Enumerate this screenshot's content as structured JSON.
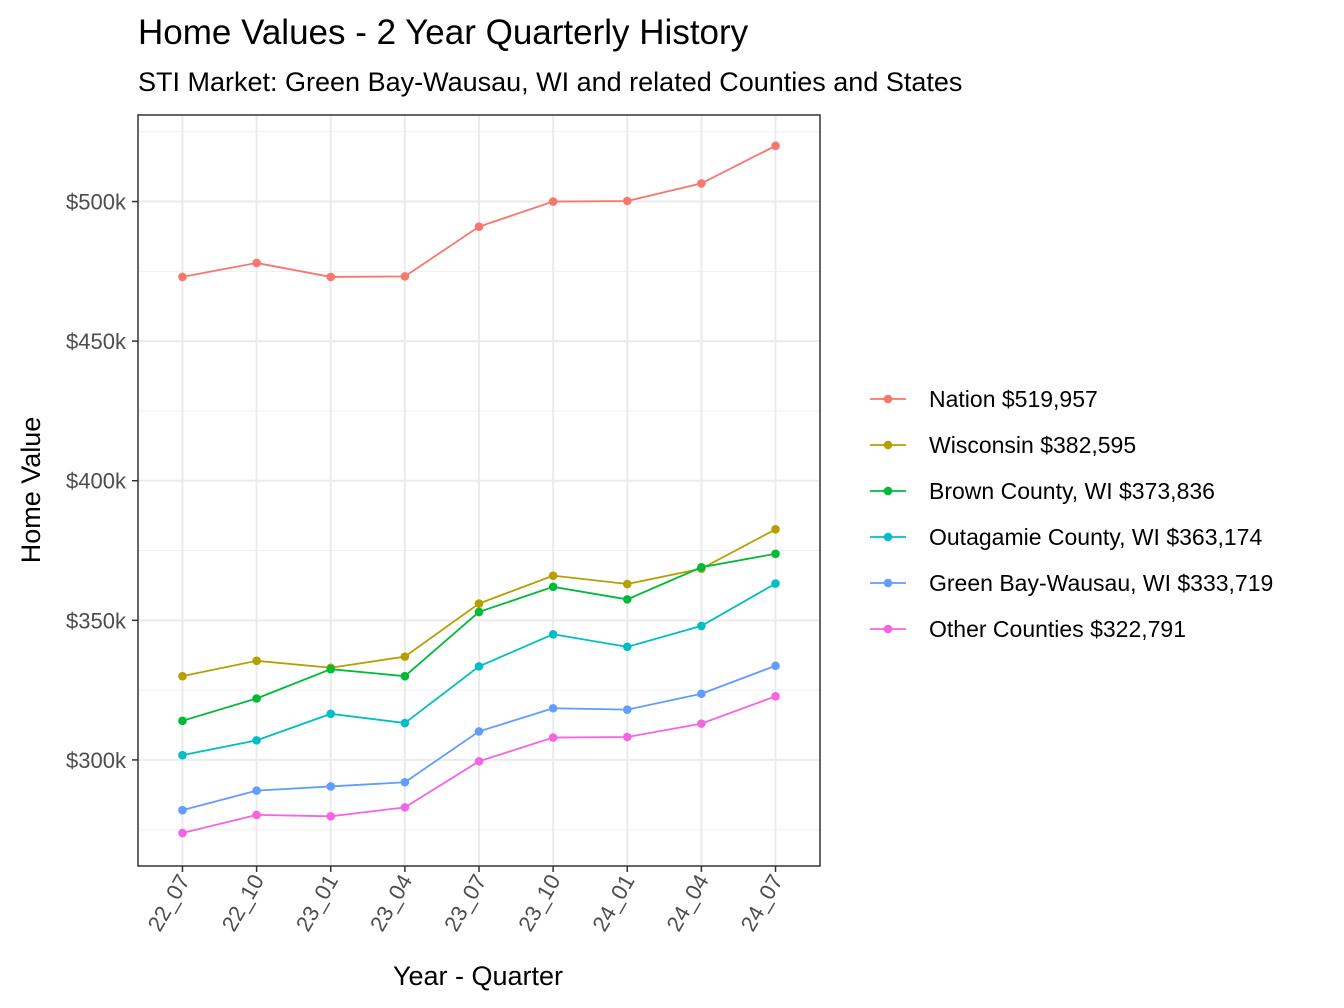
{
  "chart_data": {
    "type": "line",
    "title": "Home Values - 2 Year Quarterly History",
    "subtitle": "STI Market: Green Bay-Wausau, WI and related Counties and States",
    "xlabel": "Year - Quarter",
    "ylabel": "Home Value",
    "categories": [
      "22_07",
      "22_10",
      "23_01",
      "23_04",
      "23_07",
      "23_10",
      "24_01",
      "24_04",
      "24_07"
    ],
    "ylim": [
      262000,
      531000
    ],
    "yticks": [
      300000,
      350000,
      400000,
      450000,
      500000
    ],
    "ytick_labels": [
      "$300k",
      "$350k",
      "$400k",
      "$450k",
      "$500k"
    ],
    "grid": true,
    "legend_position": "right",
    "series": [
      {
        "name": "Nation $519,957",
        "color": "#F8766D",
        "values": [
          473000,
          478000,
          473000,
          473200,
          491000,
          500000,
          500200,
          506500,
          519957
        ]
      },
      {
        "name": "Wisconsin $382,595",
        "color": "#B79F00",
        "values": [
          330000,
          335500,
          333000,
          337000,
          356000,
          366000,
          363000,
          368500,
          382595
        ]
      },
      {
        "name": "Brown County, WI $373,836",
        "color": "#00BA38",
        "values": [
          314000,
          322000,
          332500,
          330000,
          353000,
          362000,
          357500,
          369000,
          373836
        ]
      },
      {
        "name": "Outagamie County, WI $363,174",
        "color": "#00BFC4",
        "values": [
          301700,
          307000,
          316500,
          313200,
          333500,
          345000,
          340500,
          348000,
          363174
        ]
      },
      {
        "name": "Green Bay-Wausau, WI $333,719",
        "color": "#619CFF",
        "values": [
          282000,
          289000,
          290500,
          292000,
          310200,
          318500,
          318000,
          323700,
          333719
        ]
      },
      {
        "name": "Other Counties $322,791",
        "color": "#F564E3",
        "values": [
          273800,
          280300,
          279800,
          283000,
          299500,
          308000,
          308200,
          313000,
          322791
        ]
      }
    ]
  }
}
